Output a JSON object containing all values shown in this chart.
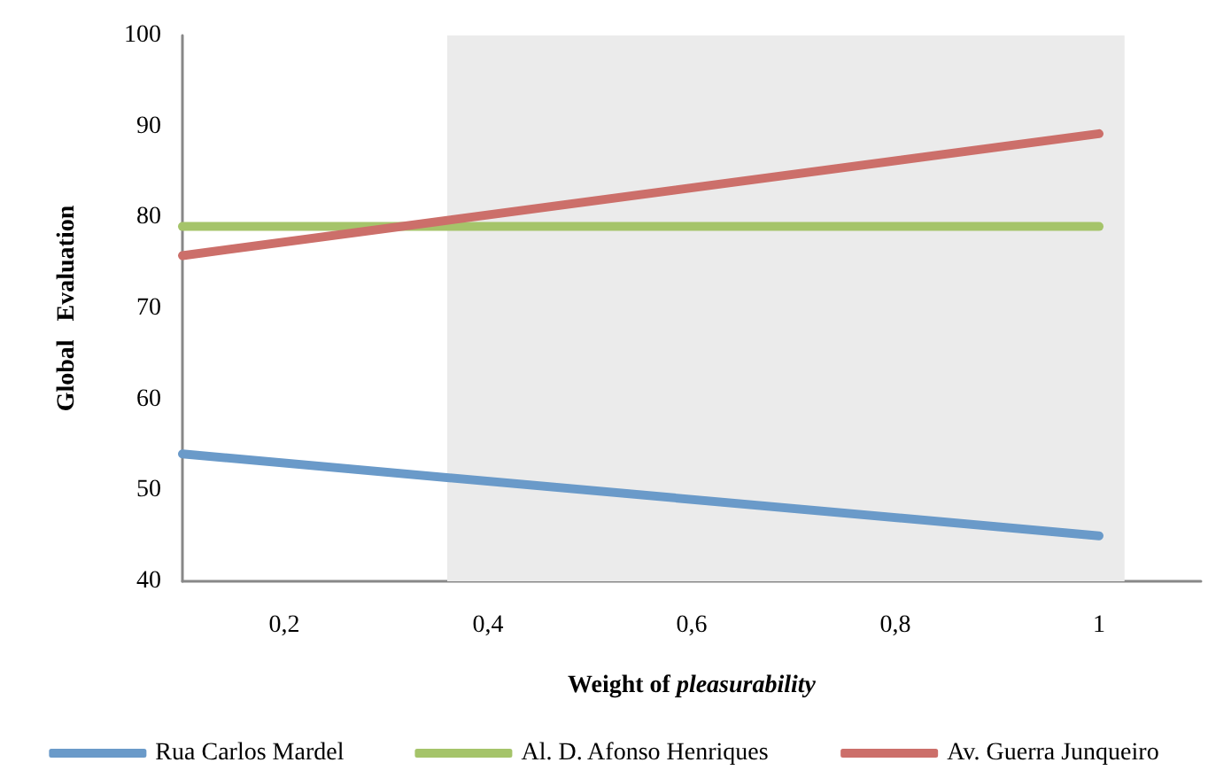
{
  "chart_data": {
    "type": "line",
    "xlabel": "Weight of pleasurability",
    "ylabel": "Global   Evaluation",
    "x": [
      0.1,
      1
    ],
    "series": [
      {
        "name": "Rua Carlos Mardel",
        "color": "#6a9ac9",
        "values": [
          54,
          45
        ]
      },
      {
        "name": "Al. D. Afonso Henriques",
        "color": "#a5c46a",
        "values": [
          79,
          79
        ]
      },
      {
        "name": "Av. Guerra Junqueiro",
        "color": "#cc6f6a",
        "values": [
          75.8,
          89.2
        ]
      }
    ],
    "xlim": [
      0.1,
      1.1
    ],
    "xticks": [
      {
        "value": 0.2,
        "label": "0,2"
      },
      {
        "value": 0.4,
        "label": "0,4"
      },
      {
        "value": 0.6,
        "label": "0,6"
      },
      {
        "value": 0.8,
        "label": "0,8"
      },
      1
    ],
    "ylim": [
      40,
      100
    ],
    "yticks": [
      40,
      50,
      60,
      70,
      80,
      90,
      100
    ],
    "bands": [
      {
        "axis": "x",
        "from": 0.36,
        "to": 1.025,
        "color": "#ebebeb"
      }
    ],
    "grid": false,
    "legend": "bottom",
    "marker": "none",
    "line_style": "solid"
  }
}
